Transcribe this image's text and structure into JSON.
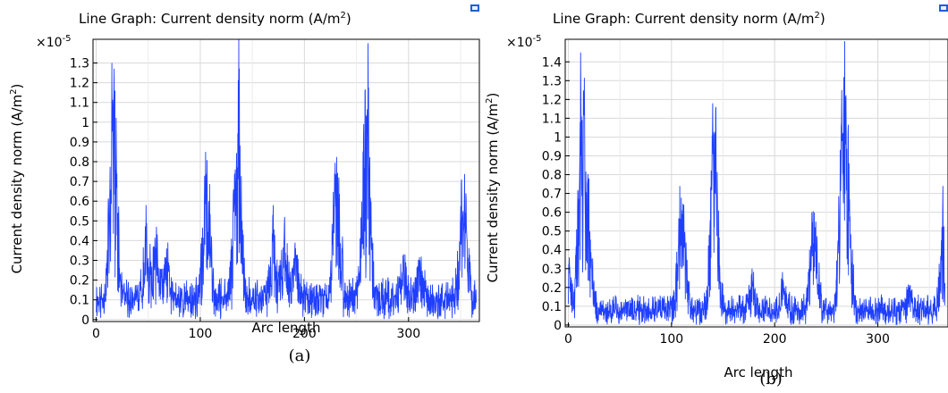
{
  "chart_data": [
    {
      "type": "line",
      "panel_label": "(a)",
      "title": "Line Graph: Current density norm (A/m",
      "title_sup": "2",
      "title_end": ")",
      "ylabel": "Current density norm (A/m",
      "ylabel_sup": "2",
      "ylabel_end": ")",
      "xlabel": "Arc length",
      "scale_label": "×10",
      "scale_exp": "-5",
      "xlim": [
        -3,
        368
      ],
      "ylim": [
        -0.01,
        1.42
      ],
      "xticks": [
        0,
        100,
        200,
        300
      ],
      "xtick_labels": [
        "0",
        "100",
        "200",
        "300"
      ],
      "yticks": [
        0,
        0.1,
        0.2,
        0.3,
        0.4,
        0.5,
        0.6,
        0.7,
        0.8,
        0.9,
        1,
        1.1,
        1.2,
        1.3
      ],
      "ytick_labels": [
        "0",
        "0.1",
        "0.2",
        "0.3",
        "0.4",
        "0.5",
        "0.6",
        "0.7",
        "0.8",
        "0.9",
        "1",
        "1.1",
        "1.2",
        "1.3"
      ],
      "grid": true,
      "color": "#1f3fff",
      "series": [
        {
          "baseline": 0.13,
          "noise": 0.1,
          "seed": 11,
          "peaks": [
            {
              "x": 15,
              "h": 1.3
            },
            {
              "x": 18,
              "h": 1.16
            },
            {
              "x": 48,
              "h": 0.58
            },
            {
              "x": 58,
              "h": 0.47
            },
            {
              "x": 68,
              "h": 0.36
            },
            {
              "x": 105,
              "h": 0.85
            },
            {
              "x": 108,
              "h": 0.6
            },
            {
              "x": 137,
              "h": 1.42
            },
            {
              "x": 133,
              "h": 0.74
            },
            {
              "x": 170,
              "h": 0.58
            },
            {
              "x": 181,
              "h": 0.52
            },
            {
              "x": 191,
              "h": 0.39
            },
            {
              "x": 229,
              "h": 0.74
            },
            {
              "x": 233,
              "h": 0.72
            },
            {
              "x": 261,
              "h": 1.4
            },
            {
              "x": 257,
              "h": 0.99
            },
            {
              "x": 295,
              "h": 0.32
            },
            {
              "x": 311,
              "h": 0.3
            },
            {
              "x": 351,
              "h": 0.71
            },
            {
              "x": 355,
              "h": 0.64
            }
          ]
        }
      ]
    },
    {
      "type": "line",
      "panel_label": "(b)",
      "title": "Line Graph: Current density norm (A/m",
      "title_sup": "2",
      "title_end": ")",
      "ylabel": "Current density norm (A/m",
      "ylabel_sup": "2",
      "ylabel_end": ")",
      "xlabel": "Arc length",
      "scale_label": "×10",
      "scale_exp": "-5",
      "xlim": [
        -3,
        368
      ],
      "ylim": [
        -0.01,
        1.52
      ],
      "xticks": [
        0,
        100,
        200,
        300
      ],
      "xtick_labels": [
        "0",
        "100",
        "200",
        "300"
      ],
      "yticks": [
        0,
        0.1,
        0.2,
        0.3,
        0.4,
        0.5,
        0.6,
        0.7,
        0.8,
        0.9,
        1,
        1.1,
        1.2,
        1.3,
        1.4
      ],
      "ytick_labels": [
        "0",
        "0.1",
        "0.2",
        "0.3",
        "0.4",
        "0.5",
        "0.6",
        "0.7",
        "0.8",
        "0.9",
        "1",
        "1.1",
        "1.2",
        "1.3",
        "1.4"
      ],
      "grid": true,
      "color": "#1f3fff",
      "series": [
        {
          "baseline": 0.1,
          "noise": 0.08,
          "seed": 23,
          "peaks": [
            {
              "x": 1,
              "h": 0.36
            },
            {
              "x": 12,
              "h": 1.45
            },
            {
              "x": 15,
              "h": 1.17
            },
            {
              "x": 20,
              "h": 0.78
            },
            {
              "x": 108,
              "h": 0.74
            },
            {
              "x": 112,
              "h": 0.64
            },
            {
              "x": 140,
              "h": 1.18
            },
            {
              "x": 143,
              "h": 1.16
            },
            {
              "x": 178,
              "h": 0.3
            },
            {
              "x": 208,
              "h": 0.24
            },
            {
              "x": 236,
              "h": 0.6
            },
            {
              "x": 240,
              "h": 0.55
            },
            {
              "x": 268,
              "h": 1.51
            },
            {
              "x": 265,
              "h": 1.25
            },
            {
              "x": 272,
              "h": 0.86
            },
            {
              "x": 330,
              "h": 0.2
            },
            {
              "x": 363,
              "h": 0.74
            }
          ]
        }
      ]
    }
  ]
}
